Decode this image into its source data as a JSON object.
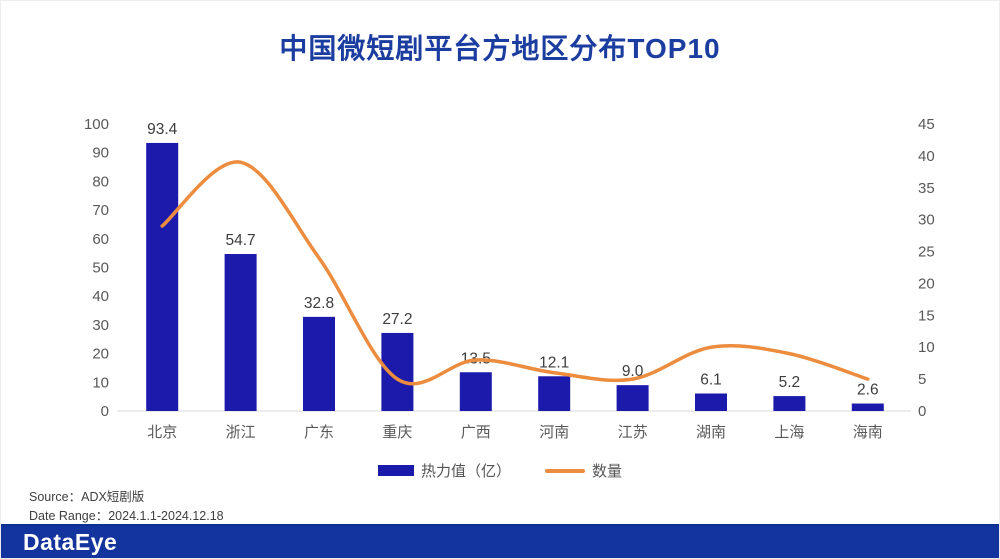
{
  "chart_data": {
    "type": "bar",
    "combo": "bar+line",
    "title": "中国微短剧平台方地区分布TOP10",
    "categories": [
      "北京",
      "浙江",
      "广东",
      "重庆",
      "广西",
      "河南",
      "江苏",
      "湖南",
      "上海",
      "海南"
    ],
    "series": [
      {
        "name": "热力值（亿）",
        "type": "bar",
        "axis": "left",
        "values": [
          93.4,
          54.7,
          32.8,
          27.2,
          13.5,
          12.1,
          9.0,
          6.1,
          5.2,
          2.6
        ],
        "labels": [
          "93.4",
          "54.7",
          "32.8",
          "27.2",
          "13.5",
          "12.1",
          "9.0",
          "6.1",
          "5.2",
          "2.6"
        ],
        "color": "#1c1aab"
      },
      {
        "name": "数量",
        "type": "line",
        "axis": "right",
        "values": [
          29,
          39,
          24,
          5,
          8,
          6,
          5,
          10,
          9,
          5
        ],
        "color": "#ec8c3f"
      }
    ],
    "y_left": {
      "min": 0,
      "max": 100,
      "ticks": [
        0,
        10,
        20,
        30,
        40,
        50,
        60,
        70,
        80,
        90,
        100
      ]
    },
    "y_right": {
      "min": 0,
      "max": 45,
      "ticks": [
        0,
        5,
        10,
        15,
        20,
        25,
        30,
        35,
        40,
        45
      ]
    },
    "grid": false,
    "legend_position": "bottom",
    "axis_text_color": "#595959",
    "label_text_color": "#3d3d3d",
    "axis_line_color": "#d9d9d9"
  },
  "footer": {
    "source_prefix": "Source：",
    "source_value": "ADX短剧版",
    "date_range_prefix": "Date Range：",
    "date_range_value": "2024.1.1-2024.12.18"
  },
  "brand": {
    "logo_text": "DataEye"
  }
}
